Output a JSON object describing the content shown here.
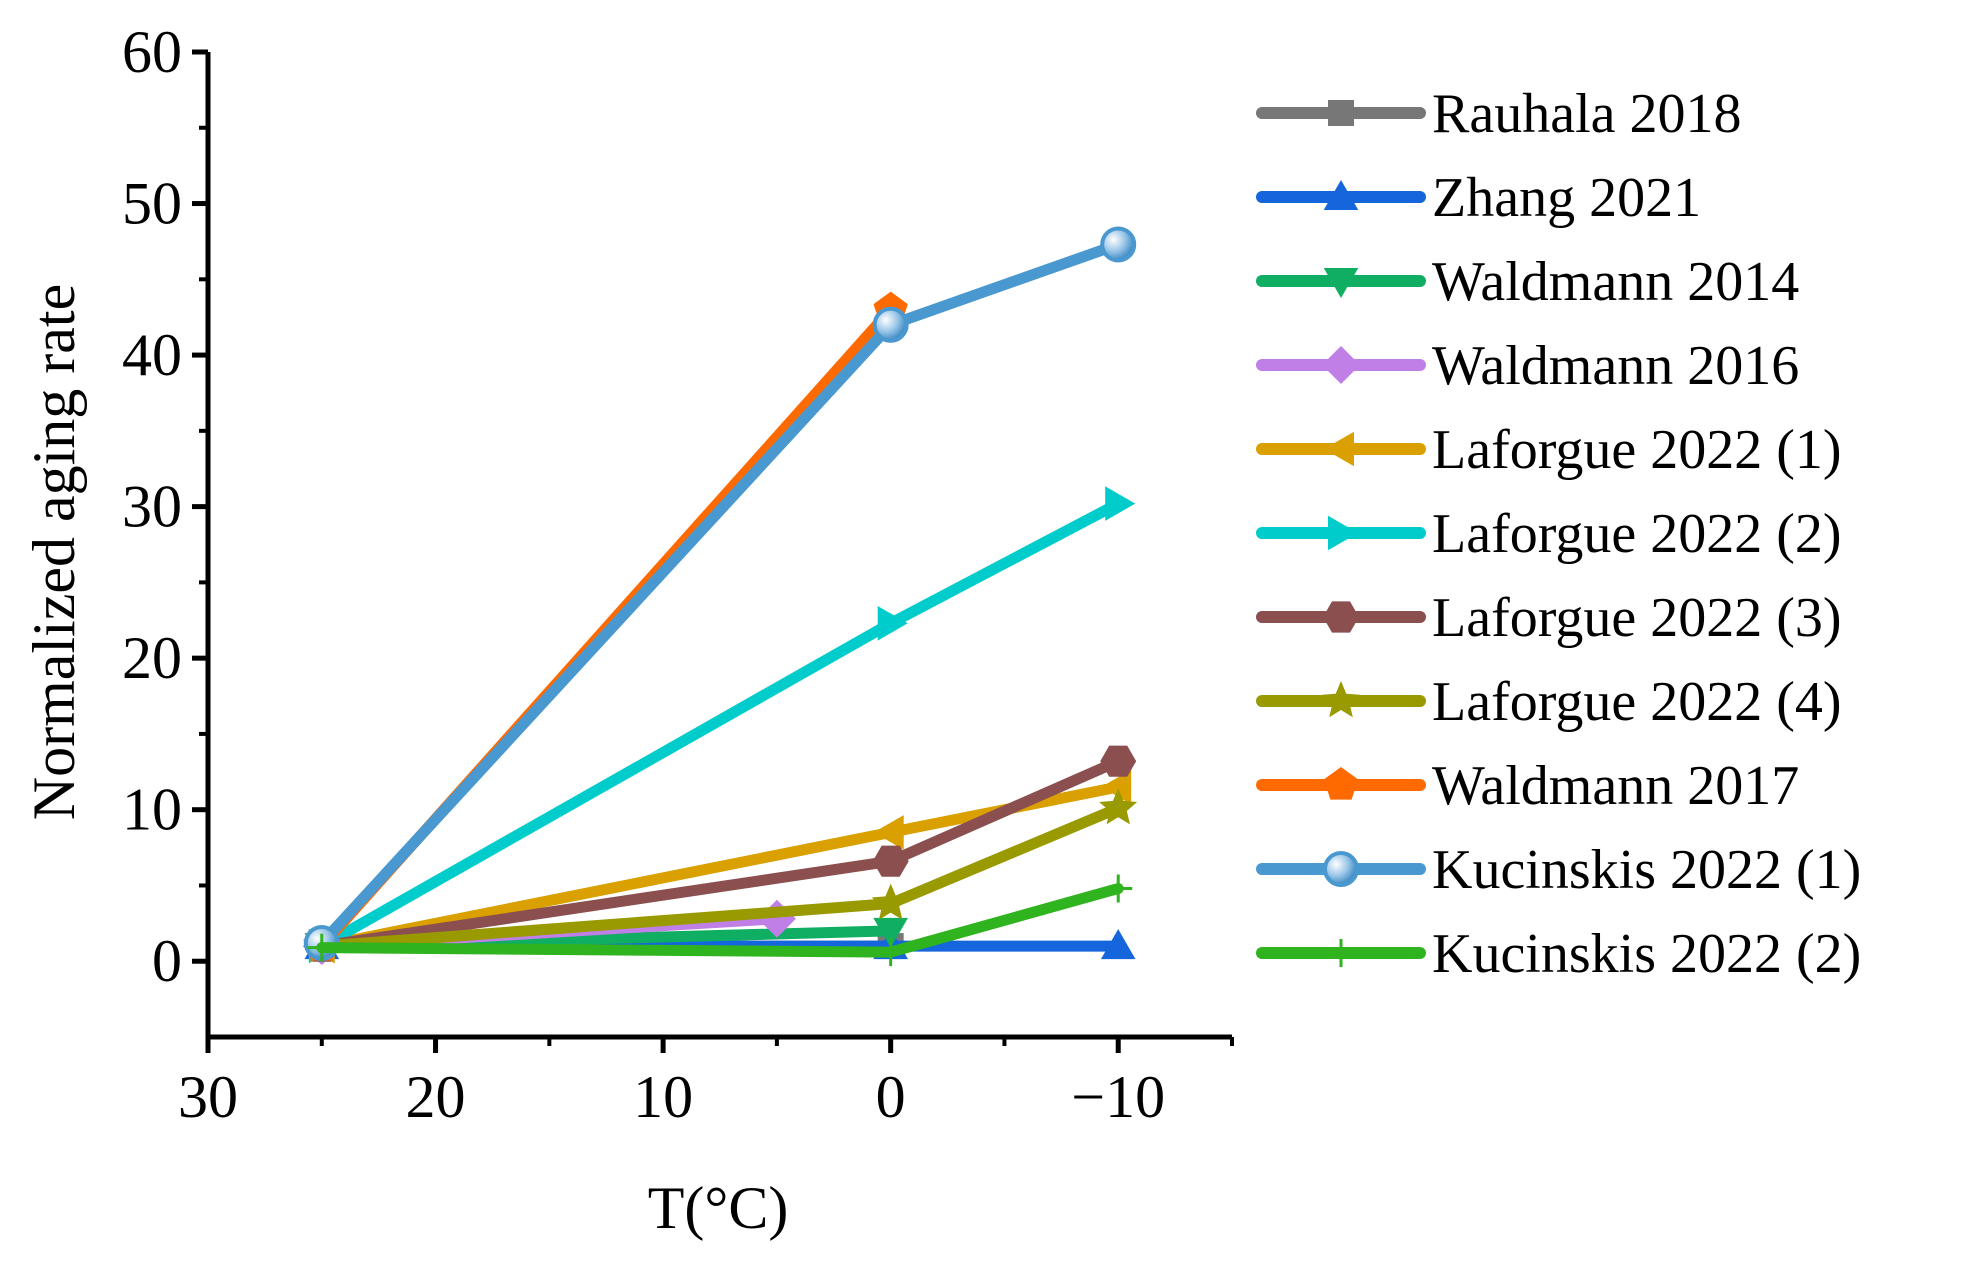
{
  "chart_data": {
    "type": "line",
    "title": "",
    "xlabel": "T(°C)",
    "ylabel": "Normalized aging rate",
    "xlim": [
      30,
      -15
    ],
    "ylim": [
      -5,
      60
    ],
    "x_reversed": true,
    "xticks": [
      30,
      20,
      10,
      0,
      -10
    ],
    "xtick_labels": [
      "30",
      "20",
      "10",
      "0",
      "−10"
    ],
    "yticks": [
      0,
      10,
      20,
      30,
      40,
      50,
      60
    ],
    "ytick_labels": [
      "0",
      "10",
      "20",
      "30",
      "40",
      "50",
      "60"
    ],
    "grid": false,
    "legend_position": "right",
    "series": [
      {
        "name": "Rauhala 2018",
        "color": "#777777",
        "marker": "square",
        "x": [
          25,
          0
        ],
        "y": [
          1,
          1
        ]
      },
      {
        "name": "Zhang 2021",
        "color": "#1566dd",
        "marker": "triangle-up",
        "x": [
          25,
          0,
          -10
        ],
        "y": [
          1,
          1,
          1
        ]
      },
      {
        "name": "Waldmann 2014",
        "color": "#0fae62",
        "marker": "triangle-down",
        "x": [
          25,
          0
        ],
        "y": [
          1,
          2
        ]
      },
      {
        "name": "Waldmann 2016",
        "color": "#c07fe6",
        "marker": "diamond",
        "x": [
          25,
          5
        ],
        "y": [
          1,
          2.8
        ]
      },
      {
        "name": "Laforgue 2022 (1)",
        "color": "#d9a000",
        "marker": "triangle-left",
        "x": [
          25,
          0,
          -10
        ],
        "y": [
          1,
          8.5,
          11.5
        ]
      },
      {
        "name": "Laforgue 2022 (2)",
        "color": "#00cccc",
        "marker": "triangle-right",
        "x": [
          25,
          0,
          -10
        ],
        "y": [
          1,
          22.3,
          30.2
        ]
      },
      {
        "name": "Laforgue 2022 (3)",
        "color": "#8b4f4f",
        "marker": "hexagon",
        "x": [
          25,
          0,
          -10
        ],
        "y": [
          1,
          6.6,
          13.2
        ]
      },
      {
        "name": "Laforgue 2022 (4)",
        "color": "#999900",
        "marker": "star",
        "x": [
          25,
          0,
          -10
        ],
        "y": [
          1,
          3.8,
          10.1
        ]
      },
      {
        "name": "Waldmann 2017",
        "color": "#ff6a00",
        "marker": "pentagon",
        "x": [
          25,
          0
        ],
        "y": [
          1,
          43
        ]
      },
      {
        "name": "Kucinskis 2022 (1)",
        "color": "#4a98d0",
        "marker": "sphere",
        "x": [
          25,
          0,
          -10
        ],
        "y": [
          1.2,
          42,
          47.3
        ]
      },
      {
        "name": "Kucinskis 2022 (2)",
        "color": "#2fb31e",
        "marker": "plus",
        "x": [
          25,
          0,
          -10
        ],
        "y": [
          0.9,
          0.6,
          4.8
        ]
      }
    ]
  }
}
